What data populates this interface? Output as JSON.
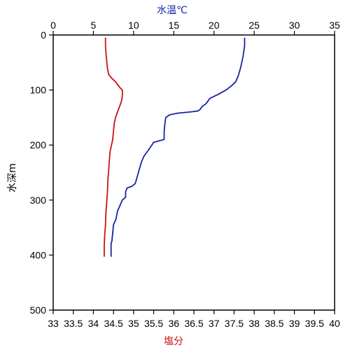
{
  "chart_data": {
    "type": "line",
    "title": "",
    "y_axis": {
      "label": "水深m",
      "range": [
        500,
        0
      ],
      "ticks": [
        0,
        100,
        200,
        300,
        400,
        500
      ]
    },
    "top_axis": {
      "label": "水温℃",
      "color": "#1a22a8",
      "range": [
        0,
        35
      ],
      "ticks": [
        0,
        5,
        10,
        15,
        20,
        25,
        30,
        35
      ]
    },
    "bottom_axis": {
      "label": "塩分",
      "color": "#cc1111",
      "range": [
        33,
        40
      ],
      "ticks": [
        "33",
        "33.5",
        "34",
        "34.5",
        "35",
        "35.5",
        "36",
        "36.5",
        "37",
        "37.5",
        "38",
        "38.5",
        "39",
        "39.5",
        "40"
      ]
    },
    "grid": false,
    "series": [
      {
        "axis": "top",
        "color": "#1a22a8",
        "points": [
          [
            23.8,
            5
          ],
          [
            23.8,
            20
          ],
          [
            23.6,
            40
          ],
          [
            23.3,
            60
          ],
          [
            23.0,
            75
          ],
          [
            22.7,
            85
          ],
          [
            22.2,
            92
          ],
          [
            21.5,
            100
          ],
          [
            20.5,
            108
          ],
          [
            19.5,
            115
          ],
          [
            19.0,
            125
          ],
          [
            18.5,
            130
          ],
          [
            18.3,
            135
          ],
          [
            18.0,
            138
          ],
          [
            17.0,
            140
          ],
          [
            15.5,
            142
          ],
          [
            14.5,
            145
          ],
          [
            14.0,
            150
          ],
          [
            13.9,
            160
          ],
          [
            13.8,
            175
          ],
          [
            13.8,
            190
          ],
          [
            13.0,
            193
          ],
          [
            12.5,
            195
          ],
          [
            11.8,
            210
          ],
          [
            11.3,
            220
          ],
          [
            11.0,
            230
          ],
          [
            10.8,
            240
          ],
          [
            10.6,
            250
          ],
          [
            10.4,
            260
          ],
          [
            10.2,
            270
          ],
          [
            9.8,
            275
          ],
          [
            9.2,
            278
          ],
          [
            9.0,
            285
          ],
          [
            9.0,
            295
          ],
          [
            8.6,
            300
          ],
          [
            8.3,
            310
          ],
          [
            8.0,
            320
          ],
          [
            7.8,
            335
          ],
          [
            7.5,
            345
          ],
          [
            7.4,
            360
          ],
          [
            7.3,
            375
          ],
          [
            7.2,
            378
          ],
          [
            7.2,
            390
          ],
          [
            7.2,
            403
          ]
        ]
      },
      {
        "axis": "bottom",
        "color": "#cc1111",
        "points": [
          [
            34.3,
            5
          ],
          [
            34.3,
            20
          ],
          [
            34.32,
            40
          ],
          [
            34.35,
            60
          ],
          [
            34.38,
            72
          ],
          [
            34.45,
            78
          ],
          [
            34.55,
            85
          ],
          [
            34.65,
            95
          ],
          [
            34.72,
            100
          ],
          [
            34.72,
            110
          ],
          [
            34.7,
            120
          ],
          [
            34.65,
            130
          ],
          [
            34.6,
            140
          ],
          [
            34.55,
            150
          ],
          [
            34.52,
            160
          ],
          [
            34.5,
            175
          ],
          [
            34.48,
            190
          ],
          [
            34.45,
            200
          ],
          [
            34.42,
            210
          ],
          [
            34.4,
            225
          ],
          [
            34.38,
            245
          ],
          [
            34.36,
            265
          ],
          [
            34.35,
            285
          ],
          [
            34.33,
            305
          ],
          [
            34.31,
            325
          ],
          [
            34.3,
            345
          ],
          [
            34.28,
            365
          ],
          [
            34.27,
            385
          ],
          [
            34.27,
            403
          ]
        ]
      }
    ]
  }
}
